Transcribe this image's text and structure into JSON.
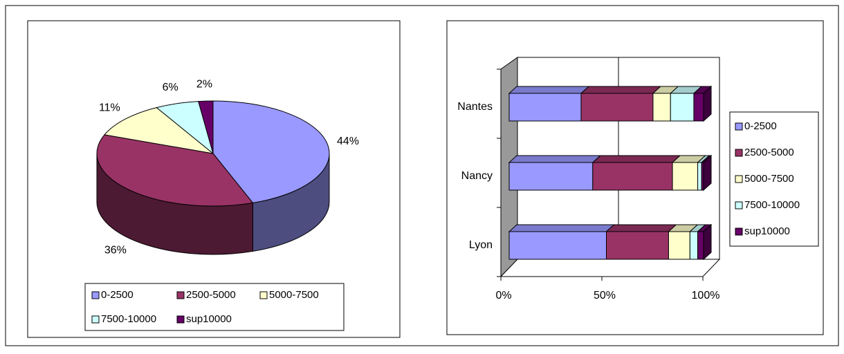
{
  "chart_data": [
    {
      "type": "pie3d",
      "categories": [
        "0-2500",
        "2500-5000",
        "5000-7500",
        "7500-10000",
        "sup10000"
      ],
      "values": [
        44,
        36,
        11,
        6,
        2
      ],
      "value_labels": [
        "44%",
        "36%",
        "11%",
        "6%",
        "2%"
      ],
      "colors": [
        "#9999ff",
        "#993366",
        "#ffffcc",
        "#ccffff",
        "#660066"
      ],
      "legend": "bottom"
    },
    {
      "type": "bar3d_stacked100",
      "categories": [
        "Lyon",
        "Nancy",
        "Nantes"
      ],
      "series": [
        {
          "name": "0-2500",
          "color": "#9999ff",
          "values": [
            50,
            43,
            37
          ]
        },
        {
          "name": "2500-5000",
          "color": "#993366",
          "values": [
            32,
            41,
            37
          ]
        },
        {
          "name": "5000-7500",
          "color": "#ffffcc",
          "values": [
            11,
            13,
            9
          ]
        },
        {
          "name": "7500-10000",
          "color": "#ccffff",
          "values": [
            4,
            2,
            12
          ]
        },
        {
          "name": "sup10000",
          "color": "#660066",
          "values": [
            3,
            1,
            5
          ]
        }
      ],
      "xlim": [
        0,
        100
      ],
      "xticks": [
        {
          "value": 0,
          "label": "0%"
        },
        {
          "value": 50,
          "label": "50%"
        },
        {
          "value": 100,
          "label": "100%"
        }
      ],
      "grid": true,
      "legend": "right"
    }
  ]
}
